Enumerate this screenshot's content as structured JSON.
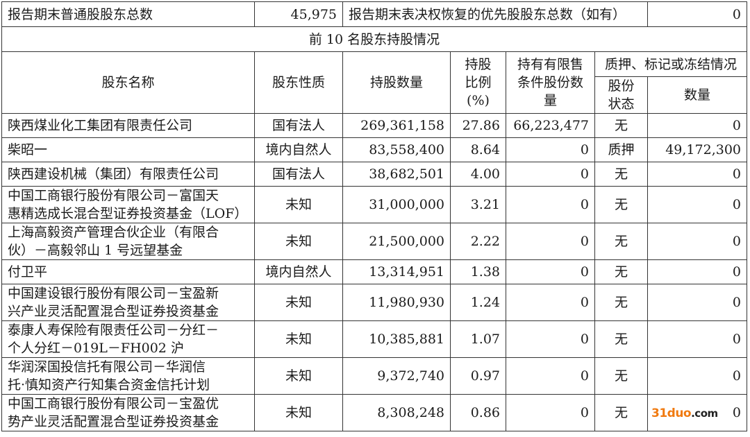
{
  "summary": {
    "common_holders_label": "报告期末普通股股东总数",
    "common_holders_value": "45,975",
    "preferred_holders_label": "报告期末表决权恢复的优先股股东总数（如有）",
    "preferred_holders_value": "0"
  },
  "section_title": "前 10 名股东持股情况",
  "headers": {
    "name": "股东名称",
    "nature": "股东性质",
    "shares": "持股数量",
    "ratio": "持股比例(%)",
    "restricted": "持有有限售条件股份数量",
    "pledge_group": "质押、标记或冻结情况",
    "pledge_status": "股份状态",
    "pledge_amount": "数量"
  },
  "rows": [
    {
      "name": "陕西煤业化工集团有限责任公司",
      "nature": "国有法人",
      "shares": "269,361,158",
      "ratio": "27.86",
      "restricted": "66,223,477",
      "status": "无",
      "amount": "0"
    },
    {
      "name": "柴昭一",
      "nature": "境内自然人",
      "shares": "83,558,400",
      "ratio": "8.64",
      "restricted": "0",
      "status": "质押",
      "amount": "49,172,300"
    },
    {
      "name": "陕西建设机械（集团）有限责任公司",
      "nature": "国有法人",
      "shares": "38,682,501",
      "ratio": "4.00",
      "restricted": "0",
      "status": "无",
      "amount": "0"
    },
    {
      "name": "中国工商银行股份有限公司－富国天\n惠精选成长混合型证券投资基金（LOF）",
      "nature": "未知",
      "shares": "31,000,000",
      "ratio": "3.21",
      "restricted": "0",
      "status": "无",
      "amount": "0"
    },
    {
      "name": "上海高毅资产管理合伙企业（有限合\n伙）－高毅邻山 1 号远望基金",
      "nature": "未知",
      "shares": "21,500,000",
      "ratio": "2.22",
      "restricted": "0",
      "status": "无",
      "amount": "0"
    },
    {
      "name": "付卫平",
      "nature": "境内自然人",
      "shares": "13,314,951",
      "ratio": "1.38",
      "restricted": "0",
      "status": "无",
      "amount": "0"
    },
    {
      "name": "中国建设银行股份有限公司－宝盈新\n兴产业灵活配置混合型证券投资基金",
      "nature": "未知",
      "shares": "11,980,930",
      "ratio": "1.24",
      "restricted": "0",
      "status": "无",
      "amount": "0"
    },
    {
      "name": "泰康人寿保险有限责任公司－分红－\n个人分红－019L－FH002 沪",
      "nature": "未知",
      "shares": "10,385,881",
      "ratio": "1.07",
      "restricted": "0",
      "status": "无",
      "amount": "0"
    },
    {
      "name": "华润深国投信托有限公司－华润信\n托·慎知资产行知集合资金信托计划",
      "nature": "未知",
      "shares": "9,372,740",
      "ratio": "0.97",
      "restricted": "0",
      "status": "无",
      "amount": "0"
    },
    {
      "name": "中国工商银行股份有限公司－宝盈优\n势产业灵活配置混合型证券投资基金",
      "nature": "未知",
      "shares": "8,308,248",
      "ratio": "0.86",
      "restricted": "0",
      "status": "无",
      "amount": "0"
    }
  ],
  "watermark": "31duo.com",
  "colors": {
    "watermark": "#f07a10",
    "border": "#333333"
  }
}
